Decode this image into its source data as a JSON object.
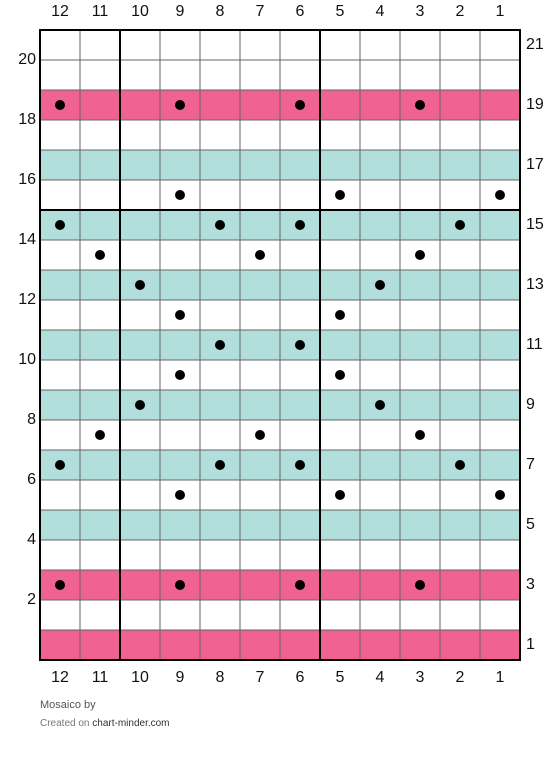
{
  "chart": {
    "columns": [
      12,
      11,
      10,
      9,
      8,
      7,
      6,
      5,
      4,
      3,
      2,
      1
    ],
    "thick_after_columns": [
      11,
      6
    ],
    "thick_after_rows": [
      16
    ],
    "rows": [
      {
        "label": 21,
        "color": "#ffffff",
        "dots": []
      },
      {
        "label": 20,
        "color": "#ffffff",
        "dots": []
      },
      {
        "label": 19,
        "color": "#f06292",
        "dots": [
          12,
          9,
          6,
          3
        ]
      },
      {
        "label": 18,
        "color": "#ffffff",
        "dots": []
      },
      {
        "label": 17,
        "color": "#b2dfdb",
        "dots": []
      },
      {
        "label": 16,
        "color": "#ffffff",
        "dots": [
          9,
          5,
          1
        ]
      },
      {
        "label": 15,
        "color": "#b2dfdb",
        "dots": [
          12,
          8,
          6,
          2
        ]
      },
      {
        "label": 14,
        "color": "#ffffff",
        "dots": [
          11,
          7,
          3
        ]
      },
      {
        "label": 13,
        "color": "#b2dfdb",
        "dots": [
          10,
          4
        ]
      },
      {
        "label": 12,
        "color": "#ffffff",
        "dots": [
          9,
          5
        ]
      },
      {
        "label": 11,
        "color": "#b2dfdb",
        "dots": [
          8,
          6
        ]
      },
      {
        "label": 10,
        "color": "#ffffff",
        "dots": [
          9,
          5
        ]
      },
      {
        "label": 9,
        "color": "#b2dfdb",
        "dots": [
          10,
          4
        ]
      },
      {
        "label": 8,
        "color": "#ffffff",
        "dots": [
          11,
          7,
          3
        ]
      },
      {
        "label": 7,
        "color": "#b2dfdb",
        "dots": [
          12,
          8,
          6,
          2
        ]
      },
      {
        "label": 6,
        "color": "#ffffff",
        "dots": [
          9,
          5,
          1
        ]
      },
      {
        "label": 5,
        "color": "#b2dfdb",
        "dots": []
      },
      {
        "label": 4,
        "color": "#ffffff",
        "dots": []
      },
      {
        "label": 3,
        "color": "#f06292",
        "dots": [
          12,
          9,
          6,
          3
        ]
      },
      {
        "label": 2,
        "color": "#ffffff",
        "dots": []
      },
      {
        "label": 1,
        "color": "#f06292",
        "dots": []
      }
    ]
  },
  "footer": {
    "title": "Mosaico by",
    "created": "Created on",
    "site": "chart-minder.com"
  }
}
